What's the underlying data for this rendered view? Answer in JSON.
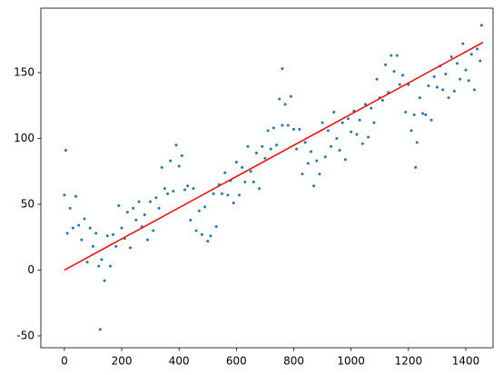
{
  "chart_data": {
    "type": "scatter",
    "xlim": [
      -82,
      1495
    ],
    "ylim": [
      -59,
      199
    ],
    "xticks": [
      0,
      200,
      400,
      600,
      800,
      1000,
      1200,
      1400
    ],
    "yticks": [
      -50,
      0,
      50,
      100,
      150
    ],
    "series": [
      {
        "type": "scatter",
        "color": "#1f77b4",
        "x": [
          0,
          10,
          20,
          30,
          40,
          50,
          60,
          70,
          80,
          90,
          100,
          110,
          120,
          130,
          140,
          150,
          160,
          170,
          180,
          190,
          200,
          210,
          220,
          230,
          240,
          250,
          260,
          270,
          280,
          290,
          300,
          310,
          320,
          330,
          340,
          350,
          360,
          370,
          380,
          390,
          400,
          410,
          420,
          430,
          440,
          450,
          460,
          470,
          480,
          490,
          500,
          510,
          520,
          530,
          540,
          550,
          560,
          570,
          580,
          590,
          600,
          610,
          620,
          630,
          640,
          650,
          660,
          670,
          680,
          690,
          700,
          710,
          720,
          730,
          740,
          750,
          760,
          770,
          780,
          790,
          800,
          810,
          820,
          830,
          840,
          850,
          860,
          870,
          880,
          890,
          900,
          910,
          920,
          930,
          940,
          950,
          960,
          970,
          980,
          990,
          1000,
          1010,
          1020,
          1030,
          1040,
          1050,
          1060,
          1070,
          1080,
          1090,
          1100,
          1110,
          1120,
          1130,
          1140,
          1150,
          1160,
          1170,
          1180,
          1190,
          1200,
          1210,
          1220,
          1230,
          1240,
          1250,
          1260,
          1270,
          1280,
          1290,
          1300,
          1310,
          1320,
          1330,
          1340,
          1350,
          1360,
          1370,
          1380,
          1390,
          1400,
          1410,
          1420,
          1430,
          1440,
          1450,
          125,
          5,
          1455,
          1225,
          760
        ],
        "values": [
          57,
          28,
          47,
          32,
          56,
          34,
          23,
          39,
          6,
          32,
          18,
          28,
          3,
          8,
          -8,
          26,
          3,
          27,
          18,
          49,
          32,
          24,
          44,
          17,
          47,
          38,
          52,
          33,
          42,
          23,
          52,
          30,
          55,
          47,
          78,
          62,
          58,
          83,
          60,
          95,
          79,
          87,
          61,
          64,
          38,
          62,
          30,
          45,
          27,
          48,
          22,
          26,
          58,
          33,
          65,
          58,
          74,
          57,
          68,
          51,
          82,
          57,
          78,
          67,
          94,
          75,
          67,
          89,
          62,
          94,
          85,
          106,
          92,
          108,
          95,
          130,
          110,
          126,
          110,
          132,
          107,
          92,
          107,
          73,
          97,
          81,
          90,
          64,
          83,
          73,
          112,
          86,
          106,
          94,
          120,
          100,
          91,
          112,
          84,
          115,
          105,
          121,
          103,
          114,
          96,
          126,
          101,
          123,
          112,
          145,
          131,
          129,
          156,
          135,
          163,
          151,
          163,
          141,
          148,
          120,
          141,
          106,
          118,
          97,
          131,
          119,
          118,
          140,
          114,
          147,
          139,
          155,
          137,
          149,
          131,
          162,
          136,
          157,
          145,
          172,
          152,
          144,
          164,
          137,
          168,
          159,
          -45,
          91,
          186,
          78,
          153
        ]
      },
      {
        "type": "line",
        "color": "red",
        "x": [
          0,
          1460
        ],
        "values": [
          0,
          173
        ]
      }
    ]
  }
}
